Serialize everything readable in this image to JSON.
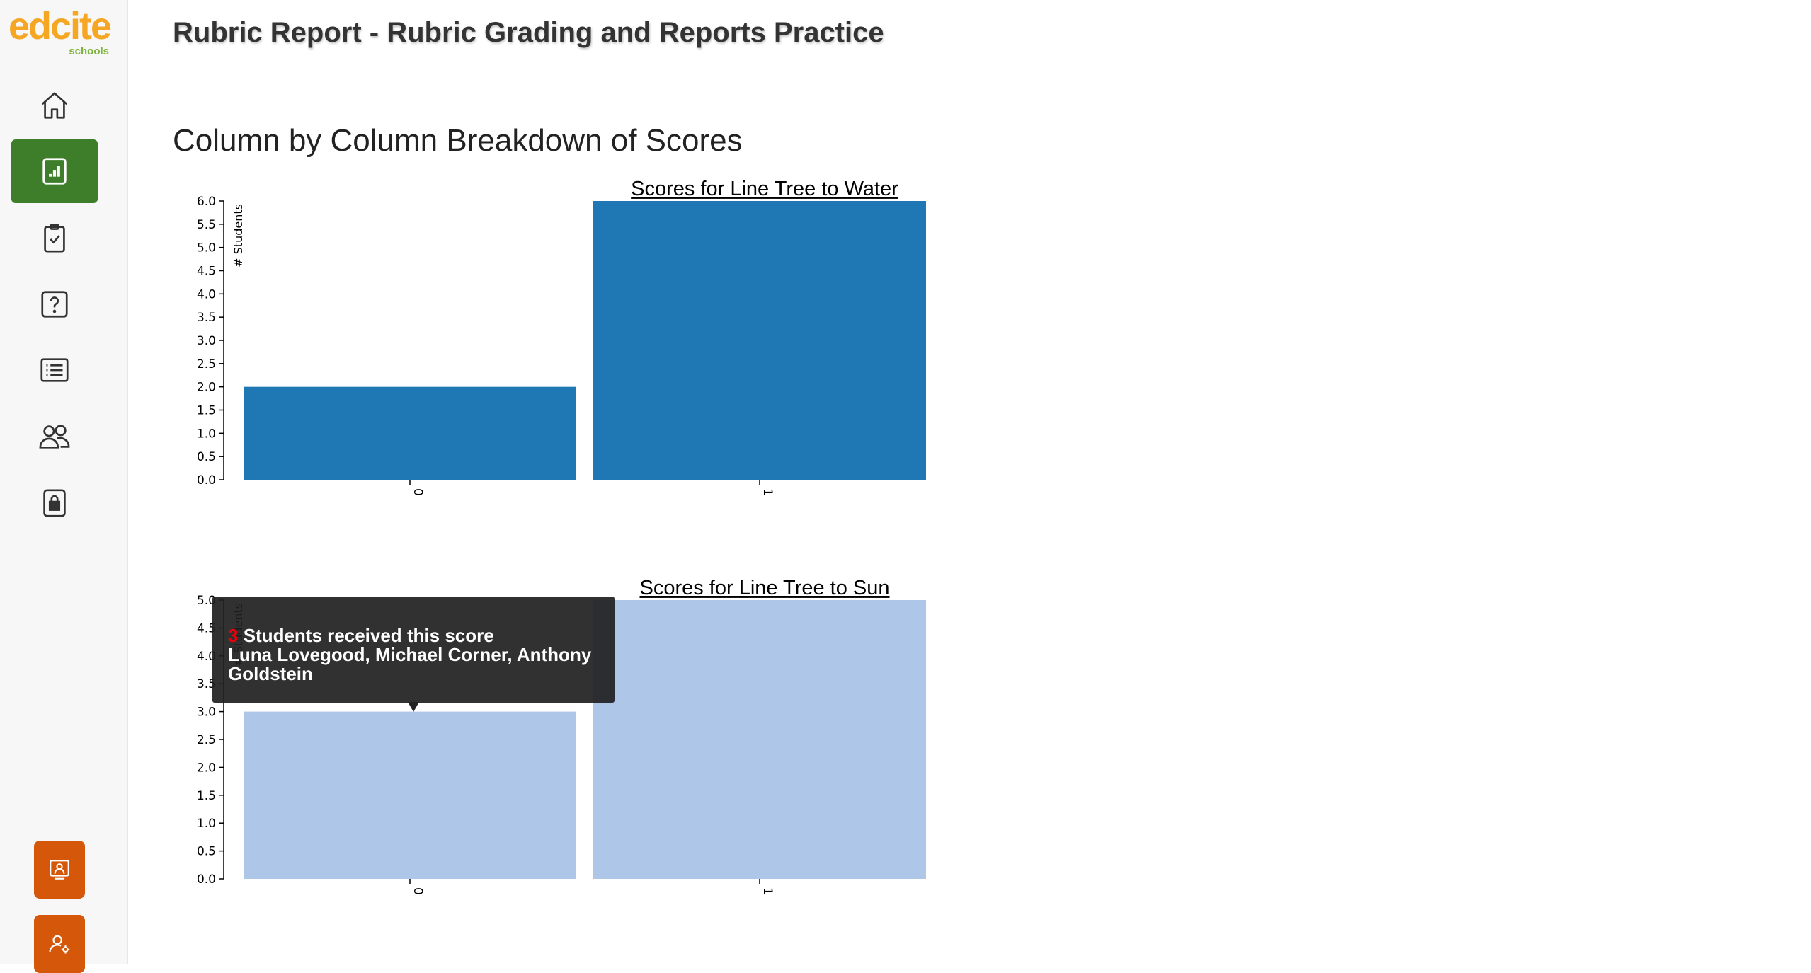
{
  "app": {
    "logo_text": "edcite",
    "logo_sub": "schools"
  },
  "sidebar": {
    "items": [
      {
        "icon": "home-icon",
        "active": false
      },
      {
        "icon": "reports-icon",
        "active": true
      },
      {
        "icon": "assignments-icon",
        "active": false
      },
      {
        "icon": "questions-icon",
        "active": false
      },
      {
        "icon": "list-icon",
        "active": false
      },
      {
        "icon": "classes-icon",
        "active": false
      },
      {
        "icon": "lock-icon",
        "active": false
      }
    ],
    "bottom_items": [
      {
        "icon": "student-view-icon"
      },
      {
        "icon": "user-settings-icon"
      }
    ],
    "accent_color": "#3e7d2a",
    "bottom_color": "#d4570a"
  },
  "header": {
    "title": "Rubric Report - Rubric Grading and Reports Practice"
  },
  "main": {
    "section_title": "Column by Column Breakdown of Scores"
  },
  "chart_data": [
    {
      "type": "bar",
      "title": "Scores for Line Tree to Water",
      "ylabel": "# Students",
      "categories": [
        "0",
        "1"
      ],
      "values": [
        2,
        6
      ],
      "ylim": [
        0,
        6
      ],
      "yticks": [
        "0.0",
        "0.5",
        "1.0",
        "1.5",
        "2.0",
        "2.5",
        "3.0",
        "3.5",
        "4.0",
        "4.5",
        "5.0",
        "5.5",
        "6.0"
      ],
      "color": "#1f77b4"
    },
    {
      "type": "bar",
      "title": "Scores for Line Tree to Sun",
      "ylabel": "# Students",
      "categories": [
        "0",
        "1"
      ],
      "values": [
        3,
        5
      ],
      "ylim": [
        0,
        5
      ],
      "yticks": [
        "0.0",
        "0.5",
        "1.0",
        "1.5",
        "2.0",
        "2.5",
        "3.0",
        "3.5",
        "4.0",
        "4.5",
        "5.0"
      ],
      "color": "#aec7e8"
    }
  ],
  "tooltip": {
    "count": "3",
    "message": "Students received this score",
    "names": "Luna Lovegood, Michael Corner, Anthony Goldstein"
  }
}
